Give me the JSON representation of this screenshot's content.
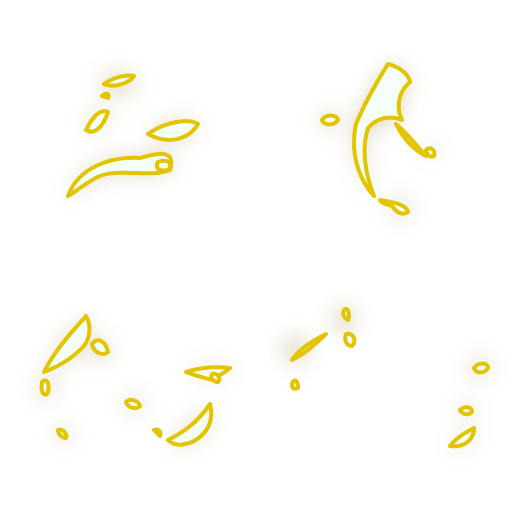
{
  "sheet": {
    "background": "#ffffff",
    "effect": "glowing-liquid-splash-sprites",
    "sprite_count": 5,
    "colors": {
      "outline": "#e2c400",
      "outline_dark": "#c9ae00",
      "highlight": "#f4fff8",
      "glow": "#9c8a3c"
    }
  }
}
